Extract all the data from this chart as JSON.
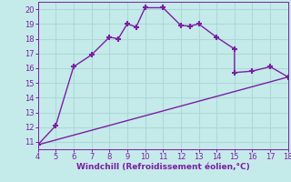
{
  "xlabel": "Windchill (Refroidissement éolien,°C)",
  "curve_x": [
    4,
    5,
    6,
    7,
    8,
    8.5,
    9,
    9.5,
    10,
    11,
    12,
    12.5,
    13,
    14,
    15,
    15,
    16,
    17,
    18
  ],
  "curve_y": [
    10.8,
    12.1,
    16.1,
    16.9,
    18.1,
    18.0,
    19.0,
    18.8,
    20.1,
    20.1,
    18.9,
    18.85,
    19.0,
    18.1,
    17.3,
    15.7,
    15.8,
    16.1,
    15.4
  ],
  "line_x": [
    4,
    18
  ],
  "line_y": [
    10.8,
    15.4
  ],
  "xlim": [
    4,
    18
  ],
  "ylim": [
    10.5,
    20.5
  ],
  "xticks": [
    4,
    5,
    6,
    7,
    8,
    9,
    10,
    11,
    12,
    13,
    14,
    15,
    16,
    17,
    18
  ],
  "yticks": [
    11,
    12,
    13,
    14,
    15,
    16,
    17,
    18,
    19,
    20
  ],
  "curve_color": "#7b1fa2",
  "line_color": "#7b1fa2",
  "bg_color": "#c5eaea",
  "grid_color": "#aed8d8",
  "tick_color": "#7b1fa2",
  "label_color": "#7b1fa2",
  "marker": "+",
  "markersize": 5,
  "markeredgewidth": 1.5,
  "linewidth": 1.0
}
